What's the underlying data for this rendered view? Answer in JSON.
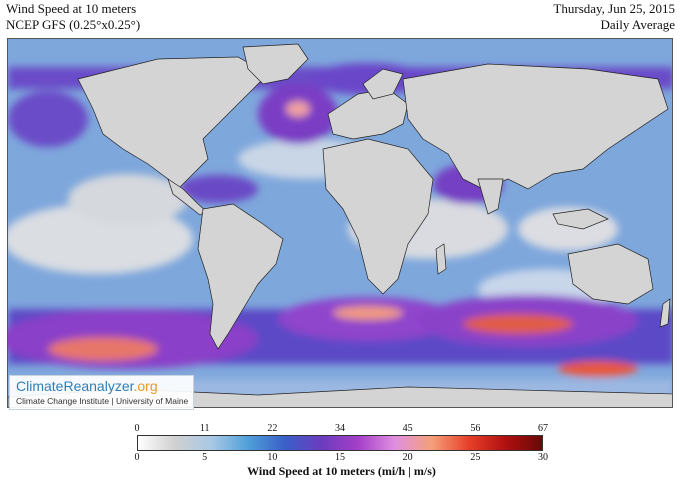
{
  "header": {
    "title": "Wind Speed at 10 meters",
    "subtitle": "NCEP GFS (0.25°x0.25°)",
    "date": "Thursday, Jun 25, 2015",
    "average": "Daily Average"
  },
  "logo": {
    "name_part1": "ClimateReanalyzer",
    "name_part2": ".org",
    "subtitle": "Climate Change Institute | University of Maine"
  },
  "colorbar": {
    "label": "Wind Speed at 10 meters (mi/h | m/s)",
    "mph_ticks": [
      "0",
      "11",
      "22",
      "34",
      "45",
      "56",
      "67"
    ],
    "ms_ticks": [
      "0",
      "5",
      "10",
      "15",
      "20",
      "25",
      "30"
    ],
    "range_ms": [
      0,
      30
    ],
    "colors": [
      "#ffffff",
      "#d0d0d0",
      "#a9c9e6",
      "#4f9fd9",
      "#3a5fc8",
      "#6c3cbf",
      "#a53fc8",
      "#e08fe0",
      "#f4a07a",
      "#e8402a",
      "#b01010",
      "#6a0808"
    ]
  },
  "map": {
    "land_color": "#d4d4d4",
    "calm_color": "#e6e6e6",
    "moderate_color": "#5a8fd8",
    "strong_color": "#6a36c0",
    "very_strong_color": "#e8584a"
  }
}
